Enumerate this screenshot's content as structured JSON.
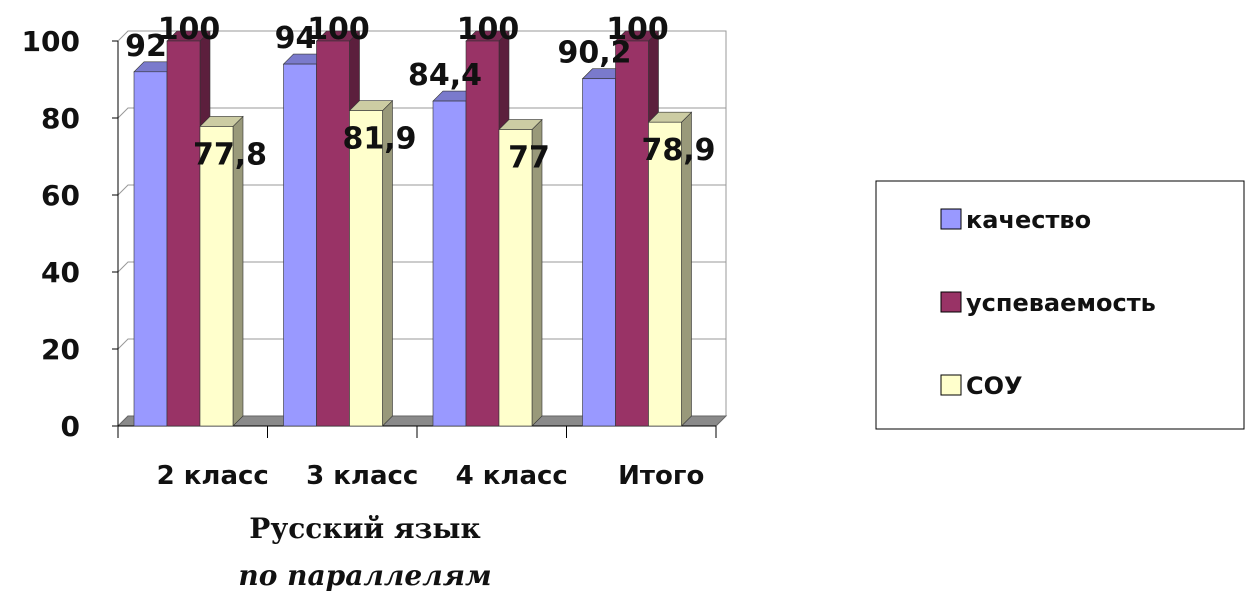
{
  "chart_data": {
    "type": "bar",
    "categories": [
      "2 класс",
      "3 класс",
      "4 класс",
      "Итого"
    ],
    "series": [
      {
        "name": "качество",
        "values": [
          92,
          94,
          84.4,
          90.2
        ],
        "labels": [
          "92",
          "94",
          "84,4",
          "90,2"
        ],
        "color": "#9999FF"
      },
      {
        "name": "успеваемость",
        "values": [
          100,
          100,
          100,
          100
        ],
        "labels": [
          "100",
          "100",
          "100",
          "100"
        ],
        "color": "#993366"
      },
      {
        "name": "СОУ",
        "values": [
          77.8,
          81.9,
          77,
          78.9
        ],
        "labels": [
          "77,8",
          "81,9",
          "77",
          "78,9"
        ],
        "color": "#FFFFCC"
      }
    ],
    "yticks": [
      "0",
      "20",
      "40",
      "60",
      "80",
      "100"
    ],
    "ylim": [
      0,
      100
    ],
    "legend_position": "right",
    "subtitle_line1": "Русский язык",
    "subtitle_line2": "по параллелям"
  }
}
